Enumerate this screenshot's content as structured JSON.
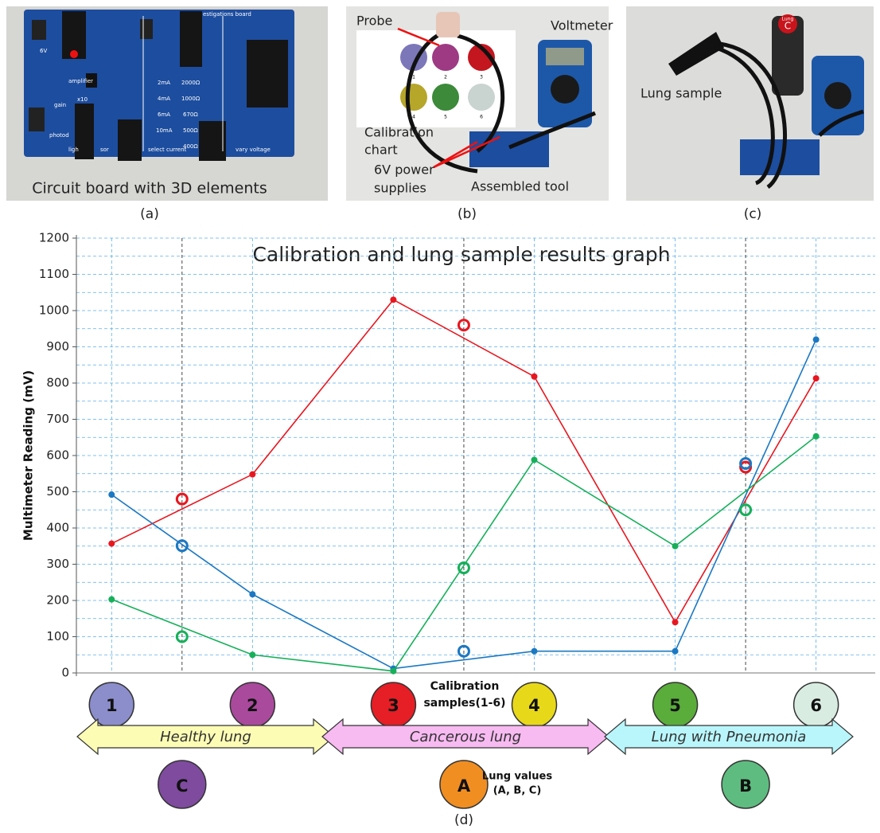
{
  "panel_a": {
    "caption": "(a)",
    "title": "Circuit board with 3D elements",
    "board_labels": [
      "estigations board",
      "6V",
      "amplifier",
      "gain",
      "x10",
      "photod",
      "ligh",
      "sor",
      "select current",
      "vary voltage",
      "2mA",
      "4mA",
      "6mA",
      "10mA",
      "2000Ω",
      "1000Ω",
      "670Ω",
      "500Ω",
      "400Ω"
    ]
  },
  "panel_b": {
    "caption": "(b)",
    "probe": "Probe",
    "voltmeter": "Voltmeter",
    "calibration_chart": [
      "Calibration",
      "chart"
    ],
    "power_supplies": [
      "6V power",
      "supplies"
    ],
    "assembled_tool": "Assembled tool",
    "chart_numbers": [
      "1",
      "2",
      "3",
      "4",
      "5",
      "6"
    ]
  },
  "panel_c": {
    "caption": "(c)",
    "lung_sample": "Lung sample",
    "tube_label": "Lung",
    "tube_letter": "C"
  },
  "chart_data": {
    "type": "line",
    "title": "Calibration and lung sample results graph",
    "y_label": "Multimeter Reading (mV)",
    "caption": "(d)",
    "x": [
      1,
      2,
      3,
      4,
      5,
      6
    ],
    "lung_x": [
      1.5,
      3.5,
      5.5
    ],
    "xlim": [
      0.75,
      6.42
    ],
    "ylim": [
      0,
      1200
    ],
    "yticks": [
      0,
      100,
      200,
      300,
      400,
      500,
      600,
      700,
      800,
      900,
      1000,
      1100,
      1200
    ],
    "ygrid": [
      50,
      100,
      150,
      200,
      250,
      300,
      350,
      400,
      450,
      500,
      550,
      600,
      650,
      700,
      750,
      800,
      850,
      900,
      950,
      1000,
      1050,
      1100,
      1150,
      1200
    ],
    "grid_color": "#5aaee6",
    "series": [
      {
        "color": "#e8171f",
        "values": [
          357,
          548,
          1030,
          818,
          140,
          813
        ],
        "lung_values": [
          480,
          960,
          568
        ]
      },
      {
        "color": "#1b78c2",
        "values": [
          492,
          217,
          12,
          60,
          60,
          920
        ],
        "lung_values": [
          351,
          60,
          578
        ]
      },
      {
        "color": "#16b05a",
        "values": [
          203,
          50,
          5,
          588,
          350,
          653
        ],
        "lung_values": [
          100,
          290,
          450
        ]
      }
    ],
    "calibration_samples": {
      "label": [
        "Calibration",
        "samples(1-6)"
      ],
      "names": [
        "1",
        "2",
        "3",
        "4",
        "5",
        "6"
      ],
      "colors": [
        "#8c8dcb",
        "#a94a9c",
        "#e61e25",
        "#e8d81a",
        "#5aac3b",
        "#d9ece1"
      ]
    },
    "lung_samples": {
      "label": [
        "Lung values",
        "(A, B, C)"
      ],
      "names": [
        "C",
        "A",
        "B"
      ],
      "colors": [
        "#7e4b9e",
        "#f08e22",
        "#5ebc80"
      ]
    },
    "regions": [
      {
        "name": "Healthy lung",
        "color": "#fcfcb5"
      },
      {
        "name": "Cancerous lung",
        "color": "#f7baf1"
      },
      {
        "name": "Lung with Pneumonia",
        "color": "#b9f6fb"
      }
    ]
  }
}
